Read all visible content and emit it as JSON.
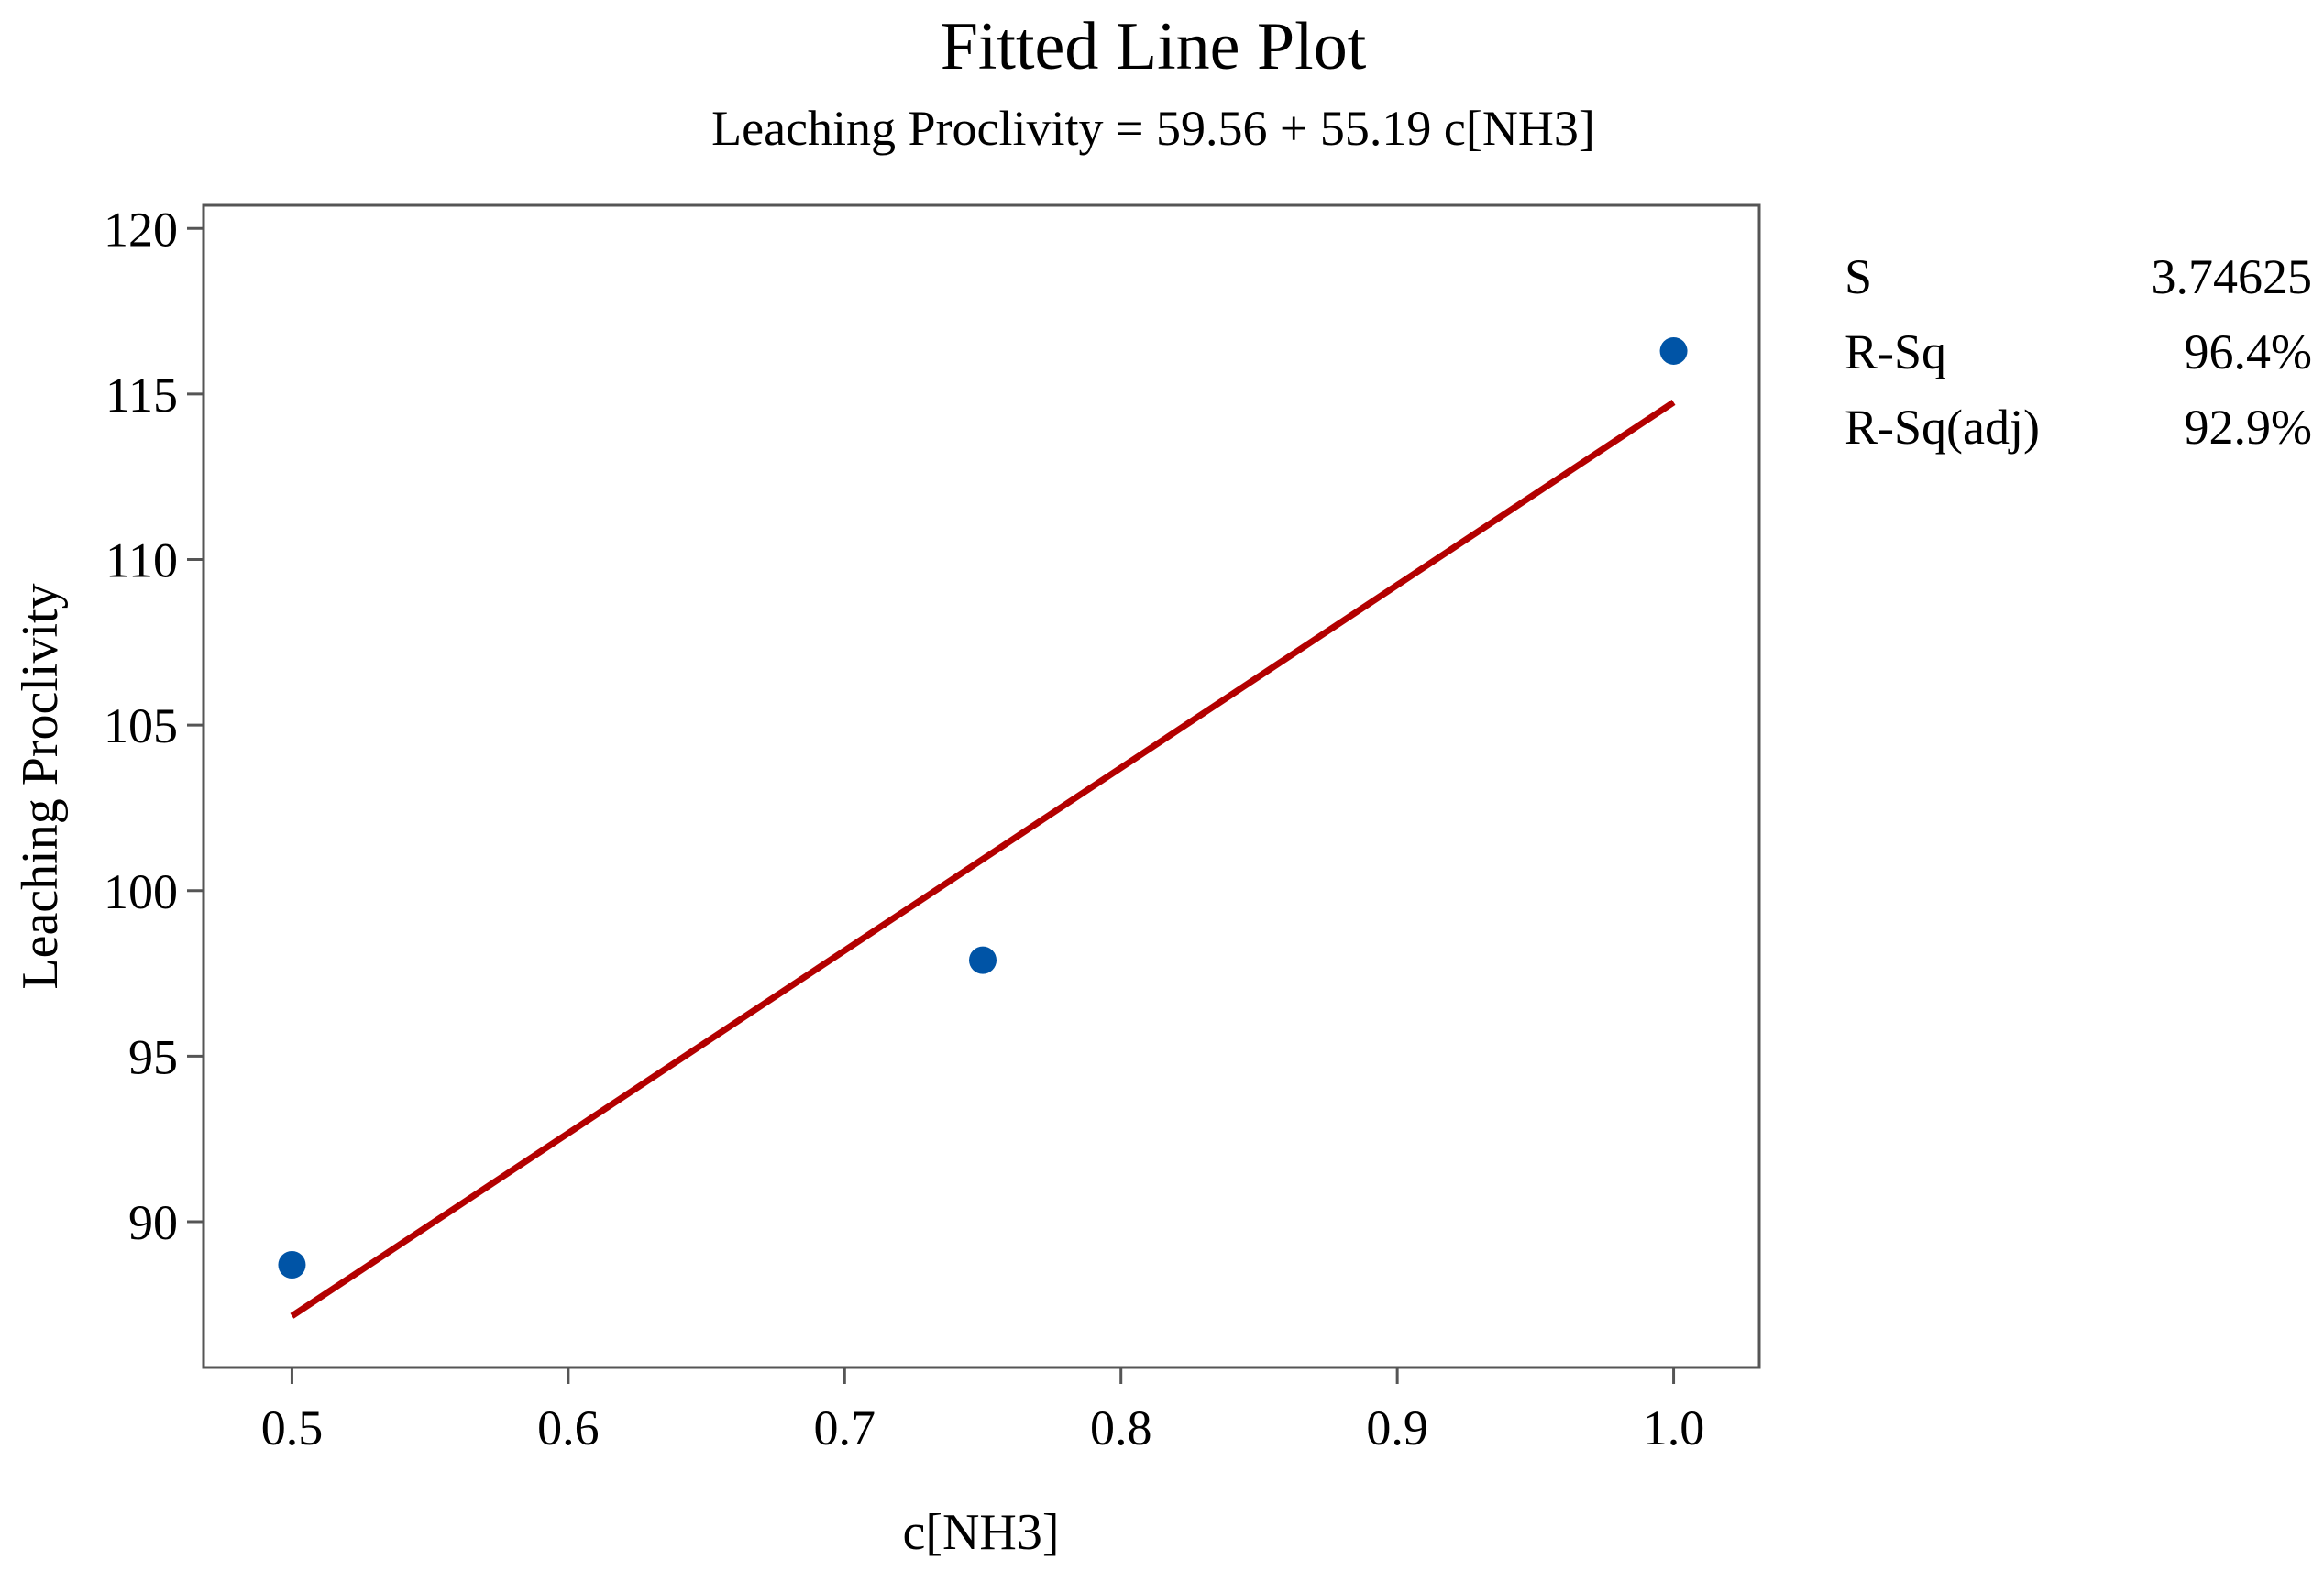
{
  "chart_data": {
    "type": "scatter",
    "title": "Fitted Line Plot",
    "subtitle": "Leaching Proclivity = 59.56 + 55.19 c[NH3]",
    "xlabel": "c[NH3]",
    "ylabel": "Leaching Proclivity",
    "xlim": [
      0.468,
      1.031
    ],
    "ylim": [
      85.6,
      120.7
    ],
    "x_ticks": [
      "0.5",
      "0.6",
      "0.7",
      "0.8",
      "0.9",
      "1.0"
    ],
    "y_ticks": [
      "90",
      "95",
      "100",
      "105",
      "110",
      "115",
      "120"
    ],
    "grid": false,
    "points": [
      {
        "x": 0.5,
        "y": 88.7
      },
      {
        "x": 0.75,
        "y": 97.9
      },
      {
        "x": 1.0,
        "y": 116.3
      }
    ],
    "fit": {
      "intercept": 59.56,
      "slope": 55.19,
      "x_range": [
        0.5,
        1.0
      ]
    },
    "stats": [
      {
        "label": "S",
        "value": "3.74625"
      },
      {
        "label": "R-Sq",
        "value": "96.4%"
      },
      {
        "label": "R-Sq(adj)",
        "value": "92.9%"
      }
    ],
    "colors": {
      "points": "#0054a6",
      "fit_line": "#b30000",
      "frame": "#555555"
    }
  }
}
